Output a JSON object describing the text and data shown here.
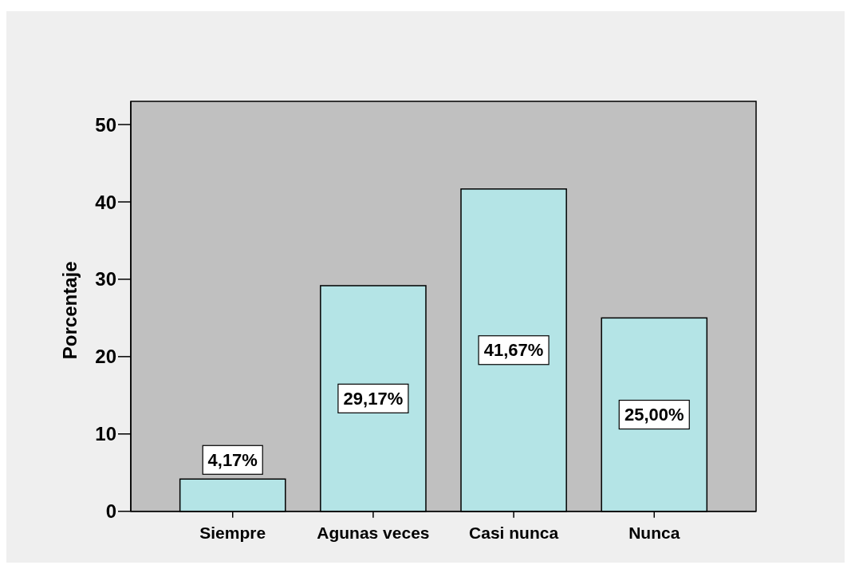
{
  "chart_data": {
    "type": "bar",
    "ylabel": "Porcentaje",
    "categories": [
      "Siempre",
      "Agunas veces",
      "Casi nunca",
      "Nunca"
    ],
    "values": [
      4.17,
      29.17,
      41.67,
      25.0
    ],
    "value_labels": [
      "4,17%",
      "29,17%",
      "41,67%",
      "25,00%"
    ],
    "color": "#b4e4e6",
    "ylim": [
      0,
      53
    ],
    "yticks": [
      0,
      10,
      20,
      30,
      40,
      50
    ]
  }
}
